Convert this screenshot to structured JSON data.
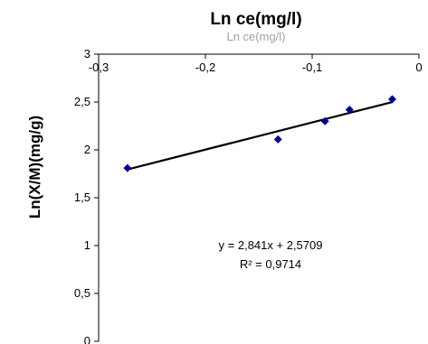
{
  "chart_data": {
    "type": "scatter",
    "title": "Ln ce(mg/l)",
    "title_overlap": "Ln ce(mg/l)",
    "xlabel": "Ln ce(mg/l)",
    "ylabel": "Ln(X/M)(mg/g)",
    "xlim": [
      -0.3,
      0
    ],
    "ylim": [
      0,
      3
    ],
    "x_axis_position": "top",
    "x_ticks": [
      -0.3,
      -0.2,
      -0.1,
      0
    ],
    "x_tick_labels": [
      "-0,3",
      "-0,2",
      "-0,1",
      "0"
    ],
    "y_ticks": [
      0,
      0.5,
      1,
      1.5,
      2,
      2.5,
      3
    ],
    "y_tick_labels": [
      "0",
      "0,5",
      "1",
      "1,5",
      "2",
      "2,5",
      "3"
    ],
    "grid": false,
    "series": [
      {
        "x": [
          -0.273,
          -0.132,
          -0.088,
          -0.065,
          -0.025
        ],
        "y": [
          1.81,
          2.11,
          2.3,
          2.42,
          2.53
        ],
        "color": "#00008B",
        "marker": "diamond"
      }
    ],
    "trendline": {
      "slope": 2.841,
      "intercept": 2.5709,
      "x_range": [
        -0.273,
        -0.025
      ],
      "color": "#000000"
    },
    "annotations": {
      "equation": "y = 2,841x + 2,5709",
      "r_squared": "R² = 0,9714"
    }
  }
}
